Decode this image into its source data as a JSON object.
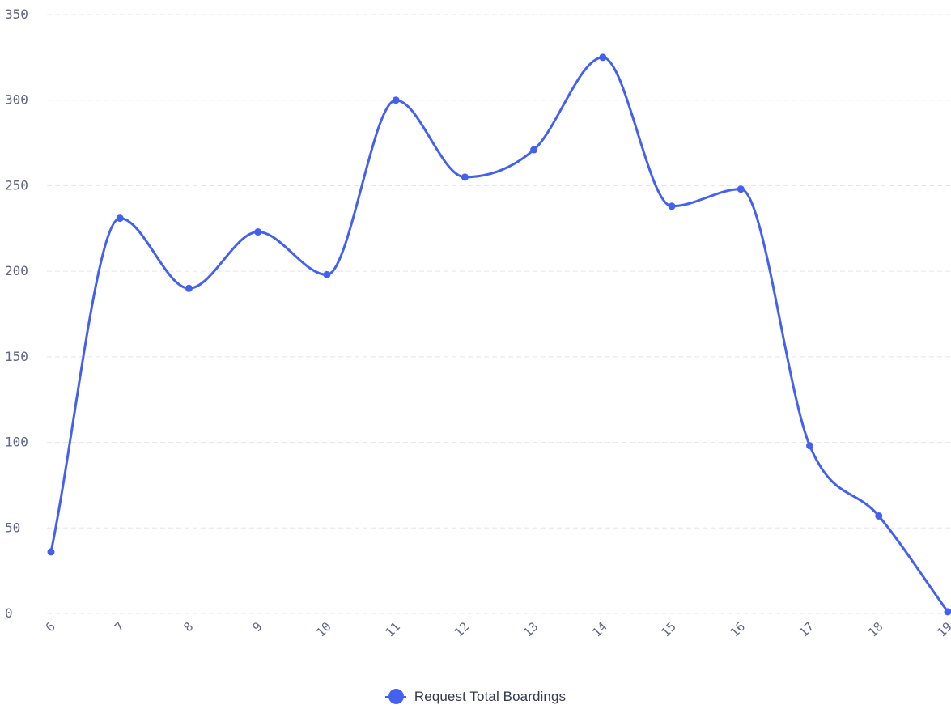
{
  "chart_data": {
    "type": "line",
    "smooth": true,
    "grid": true,
    "legend_position": "bottom-center",
    "x": [
      6,
      7,
      8,
      9,
      10,
      11,
      12,
      13,
      14,
      15,
      16,
      17,
      18,
      19
    ],
    "x_tick_labels": [
      "6",
      "7",
      "8",
      "9",
      "10",
      "11",
      "12",
      "13",
      "14",
      "15",
      "16",
      "17",
      "18",
      "19"
    ],
    "ylim": [
      0,
      350
    ],
    "y_ticks": [
      0,
      50,
      100,
      150,
      200,
      250,
      300,
      350
    ],
    "series": [
      {
        "name": "Request Total Boardings",
        "color": "#4361ee",
        "values": [
          36,
          231,
          190,
          223,
          198,
          300,
          255,
          271,
          325,
          238,
          248,
          98,
          57,
          1
        ]
      }
    ]
  }
}
